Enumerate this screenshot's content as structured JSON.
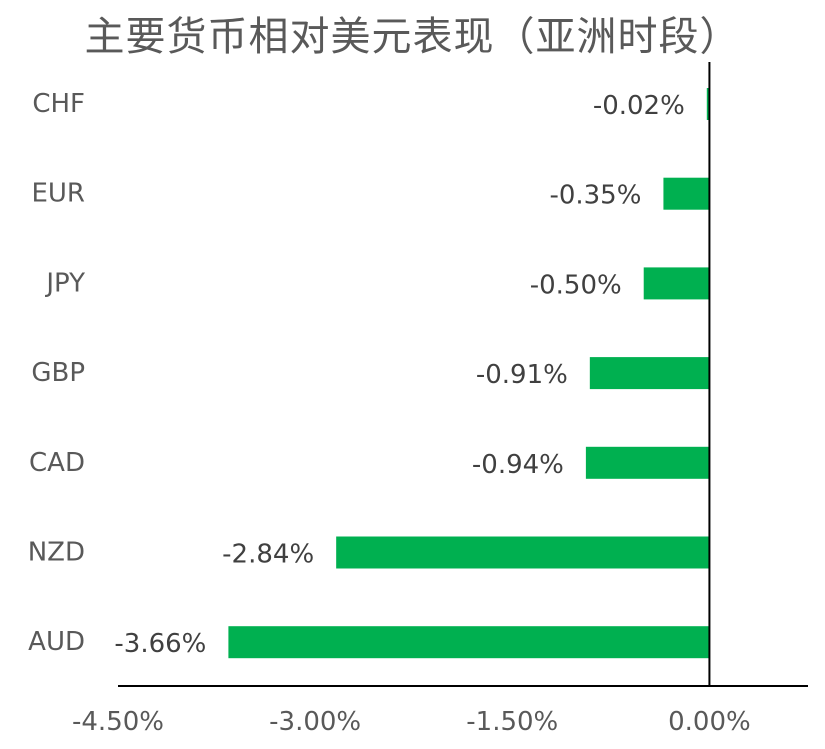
{
  "chart_data": {
    "type": "bar",
    "orientation": "horizontal",
    "title": "主要货币相对美元表现（亚洲时段）",
    "categories": [
      "CHF",
      "EUR",
      "JPY",
      "GBP",
      "CAD",
      "NZD",
      "AUD"
    ],
    "values": [
      -0.02,
      -0.35,
      -0.5,
      -0.91,
      -0.94,
      -2.84,
      -3.66
    ],
    "data_labels": [
      "-0.02%",
      "-0.35%",
      "-0.50%",
      "-0.91%",
      "-0.94%",
      "-2.84%",
      "-3.66%"
    ],
    "x_ticks": [
      -4.5,
      -3.0,
      -1.5,
      0.0
    ],
    "x_tick_labels": [
      "-4.50%",
      "-3.00%",
      "-1.50%",
      "0.00%"
    ],
    "xlim": [
      -4.5,
      0.75
    ],
    "bar_color": "#00B050",
    "grid": false,
    "legend": "none"
  }
}
